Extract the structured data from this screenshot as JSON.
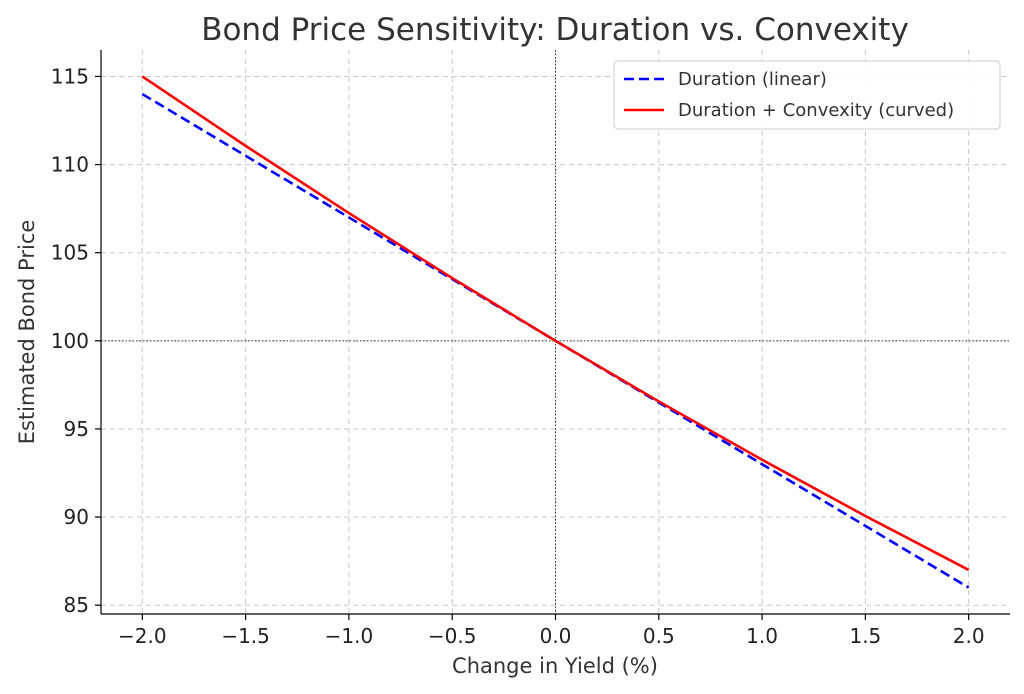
{
  "chart_data": {
    "type": "line",
    "title": "Bond Price Sensitivity: Duration vs. Convexity",
    "xlabel": "Change in Yield (%)",
    "ylabel": "Estimated Bond Price",
    "xlim": [
      -2.2,
      2.2
    ],
    "ylim": [
      84.5,
      116.5
    ],
    "x_ticks": [
      -2.0,
      -1.5,
      -1.0,
      -0.5,
      0.0,
      0.5,
      1.0,
      1.5,
      2.0
    ],
    "x_tick_labels": [
      "−2.0",
      "−1.5",
      "−1.0",
      "−0.5",
      "0.0",
      "0.5",
      "1.0",
      "1.5",
      "2.0"
    ],
    "y_ticks": [
      85,
      90,
      95,
      100,
      105,
      110,
      115
    ],
    "y_tick_labels": [
      "85",
      "90",
      "95",
      "100",
      "105",
      "110",
      "115"
    ],
    "grid": true,
    "legend_position": "top-right",
    "reference_lines": {
      "x": 0,
      "y": 100
    },
    "x": [
      -2.0,
      -1.5,
      -1.0,
      -0.5,
      0.0,
      0.5,
      1.0,
      1.5,
      2.0
    ],
    "series": [
      {
        "name": "Duration (linear)",
        "style": "dashed",
        "color": "#0000ff",
        "values": [
          114,
          110.5,
          107,
          103.5,
          100,
          96.5,
          93,
          89.5,
          86
        ]
      },
      {
        "name": "Duration + Convexity (curved)",
        "style": "solid",
        "color": "#ff0000",
        "values": [
          115,
          111.06,
          107.25,
          103.56,
          100,
          96.56,
          93.25,
          90.06,
          87
        ]
      }
    ]
  }
}
